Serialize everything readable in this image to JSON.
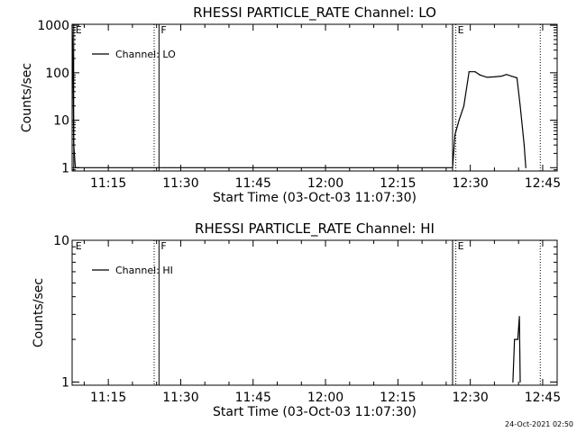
{
  "chart_data": [
    {
      "type": "line",
      "title": "RHESSI PARTICLE_RATE Channel: LO",
      "xlabel": "Start Time (03-Oct-03 11:07:30)",
      "ylabel": "Counts/sec",
      "y_scale": "log",
      "xlim": [
        "11:07:30",
        "12:48:00"
      ],
      "ylim": [
        0.85,
        1050
      ],
      "x_ticks": [
        "11:15",
        "11:30",
        "11:45",
        "12:00",
        "12:15",
        "12:30",
        "12:45"
      ],
      "y_ticks": [
        "1",
        "10",
        "100",
        "1000"
      ],
      "legend": "top-left",
      "series": [
        {
          "name": "Channel: LO",
          "points": [
            [
              "11:07:30",
              1000
            ],
            [
              "11:07:40",
              200
            ],
            [
              "11:07:50",
              3
            ],
            [
              "11:08:10",
              1
            ],
            [
              "12:26:20",
              1
            ],
            [
              "12:26:50",
              5
            ],
            [
              "12:27:40",
              10
            ],
            [
              "12:28:40",
              20
            ],
            [
              "12:29:45",
              105
            ],
            [
              "12:31:00",
              105
            ],
            [
              "12:32:00",
              90
            ],
            [
              "12:33:30",
              80
            ],
            [
              "12:35:00",
              82
            ],
            [
              "12:36:30",
              85
            ],
            [
              "12:37:30",
              92
            ],
            [
              "12:38:30",
              85
            ],
            [
              "12:39:40",
              78
            ],
            [
              "12:40:20",
              20
            ],
            [
              "12:41:10",
              3
            ],
            [
              "12:41:30",
              1
            ]
          ]
        }
      ],
      "markers": [
        {
          "label": "E",
          "time": "11:07:50",
          "style": "solid"
        },
        {
          "label": "",
          "time": "11:24:30",
          "style": "dotted"
        },
        {
          "label": "F",
          "time": "11:25:30",
          "style": "solid"
        },
        {
          "label": "",
          "time": "12:26:20",
          "style": "solid"
        },
        {
          "label": "E",
          "time": "12:27:00",
          "style": "dotted"
        },
        {
          "label": "",
          "time": "12:44:30",
          "style": "dotted"
        }
      ]
    },
    {
      "type": "line",
      "title": "RHESSI PARTICLE_RATE Channel: HI",
      "xlabel": "Start Time (03-Oct-03 11:07:30)",
      "ylabel": "Counts/sec",
      "y_scale": "log",
      "xlim": [
        "11:07:30",
        "12:48:00"
      ],
      "ylim": [
        0.95,
        10
      ],
      "x_ticks": [
        "11:15",
        "11:30",
        "11:45",
        "12:00",
        "12:15",
        "12:30",
        "12:45"
      ],
      "y_ticks": [
        "1",
        "10"
      ],
      "legend": "top-left",
      "series": [
        {
          "name": "Channel: HI",
          "points": [
            [
              "12:38:50",
              1
            ],
            [
              "12:39:10",
              2
            ],
            [
              "12:39:50",
              2
            ],
            [
              "12:40:10",
              2.9
            ],
            [
              "12:40:20",
              1
            ]
          ]
        }
      ],
      "markers": [
        {
          "label": "E",
          "time": "11:07:50",
          "style": "none"
        },
        {
          "label": "",
          "time": "11:24:30",
          "style": "dotted"
        },
        {
          "label": "F",
          "time": "11:25:30",
          "style": "solid"
        },
        {
          "label": "",
          "time": "12:26:20",
          "style": "solid"
        },
        {
          "label": "E",
          "time": "12:27:00",
          "style": "dotted"
        },
        {
          "label": "",
          "time": "12:44:30",
          "style": "dotted"
        }
      ]
    }
  ],
  "footer": {
    "timestamp": "24-Oct-2021 02:50"
  }
}
